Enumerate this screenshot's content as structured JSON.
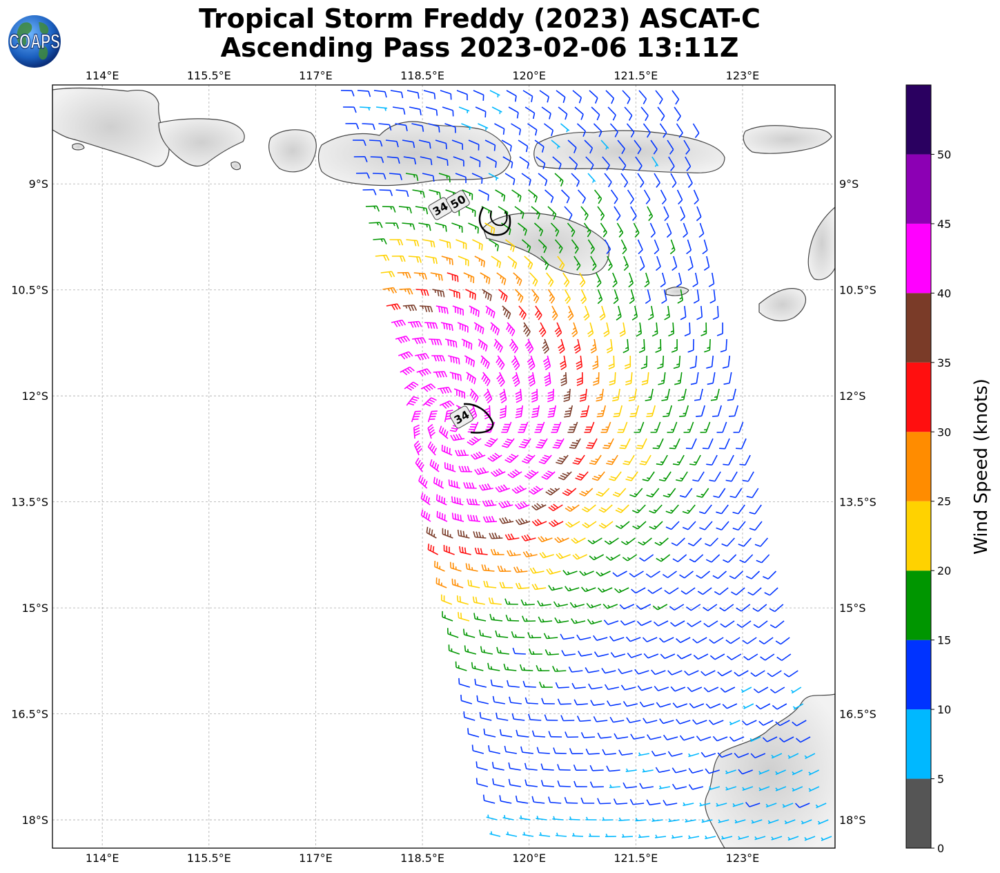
{
  "title": {
    "line1": "Tropical Storm Freddy (2023) ASCAT-C",
    "line2": "Ascending Pass 2023-02-06 13:11Z"
  },
  "logo": {
    "text": "COAPS",
    "icon": "globe-icon"
  },
  "map": {
    "lon_range": [
      113.3,
      124.3
    ],
    "lat_range": [
      -18.4,
      -7.6
    ],
    "lon_ticks": [
      {
        "value": 114,
        "label": "114°E"
      },
      {
        "value": 115.5,
        "label": "115.5°E"
      },
      {
        "value": 117,
        "label": "117°E"
      },
      {
        "value": 118.5,
        "label": "118.5°E"
      },
      {
        "value": 120,
        "label": "120°E"
      },
      {
        "value": 121.5,
        "label": "121.5°E"
      },
      {
        "value": 123,
        "label": "123°E"
      }
    ],
    "lat_ticks": [
      {
        "value": -9,
        "label": "9°S"
      },
      {
        "value": -10.5,
        "label": "10.5°S"
      },
      {
        "value": -12,
        "label": "12°S"
      },
      {
        "value": -13.5,
        "label": "13.5°S"
      },
      {
        "value": -15,
        "label": "15°S"
      },
      {
        "value": -16.5,
        "label": "16.5°S"
      },
      {
        "value": -18,
        "label": "18°S"
      }
    ],
    "grid": true,
    "storm_center": {
      "lon": 118.95,
      "lat": -12.35
    },
    "contour_labels": [
      {
        "text": "34",
        "lon": 118.75,
        "lat": -9.35
      },
      {
        "text": "50",
        "lon": 119.0,
        "lat": -9.25
      },
      {
        "text": "34",
        "lon": 119.05,
        "lat": -12.3
      }
    ],
    "swath": {
      "west_top_lon": 117.3,
      "east_top_lon": 122.2,
      "west_bottom_lon": 119.6,
      "east_bottom_lon": 124.3
    }
  },
  "colorbar": {
    "label": "Wind Speed (knots)",
    "ticks": [
      "0",
      "5",
      "10",
      "15",
      "20",
      "25",
      "30",
      "35",
      "40",
      "45",
      "50"
    ],
    "bins": [
      {
        "min": 0,
        "max": 5,
        "color": "#555555"
      },
      {
        "min": 5,
        "max": 10,
        "color": "#00b8ff"
      },
      {
        "min": 10,
        "max": 15,
        "color": "#0033ff"
      },
      {
        "min": 15,
        "max": 20,
        "color": "#009600"
      },
      {
        "min": 20,
        "max": 25,
        "color": "#ffd200"
      },
      {
        "min": 25,
        "max": 30,
        "color": "#ff8c00"
      },
      {
        "min": 30,
        "max": 35,
        "color": "#ff0f0f"
      },
      {
        "min": 35,
        "max": 40,
        "color": "#7a3b28"
      },
      {
        "min": 40,
        "max": 45,
        "color": "#ff00ff"
      },
      {
        "min": 45,
        "max": 50,
        "color": "#8c00b4"
      },
      {
        "min": 50,
        "max": 55,
        "color": "#2a0060"
      }
    ]
  }
}
